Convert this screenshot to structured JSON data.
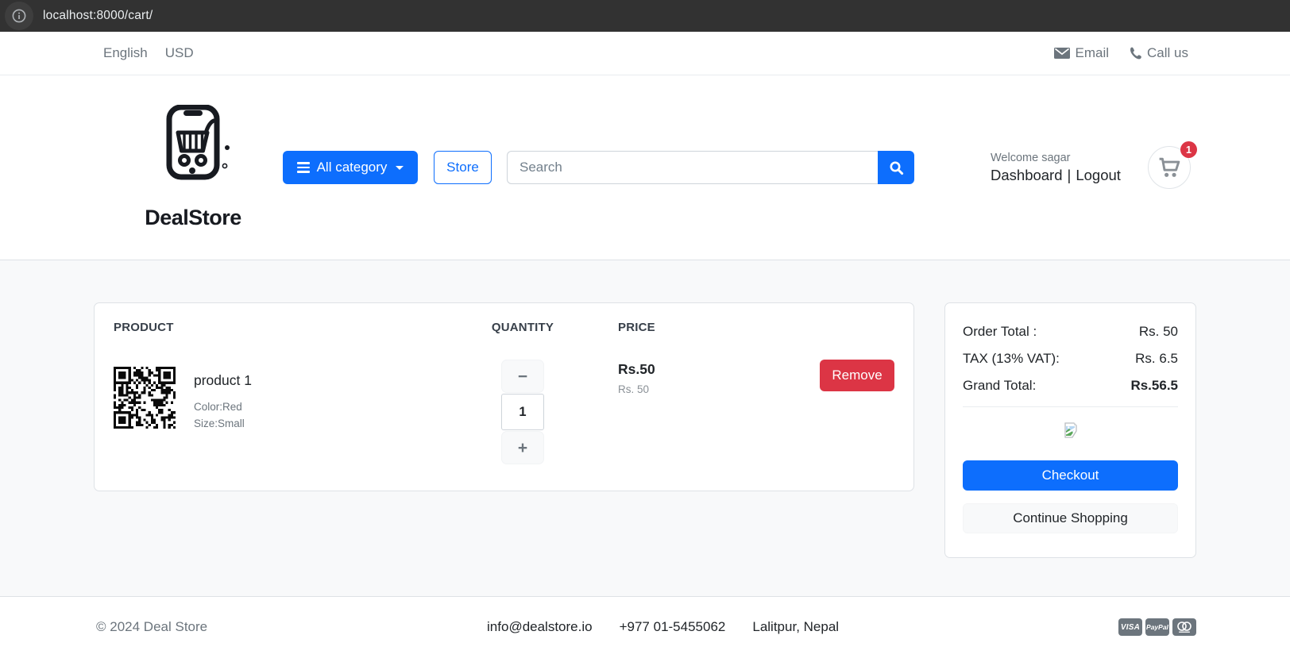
{
  "browser": {
    "url": "localhost:8000/cart/"
  },
  "topbar": {
    "language": "English",
    "currency": "USD",
    "email_label": "Email",
    "call_label": "Call us"
  },
  "header": {
    "brand": "DealStore",
    "category_button": "All category",
    "store_button": "Store",
    "search_placeholder": "Search",
    "welcome": "Welcome sagar",
    "dashboard": "Dashboard",
    "separator": "|",
    "logout": "Logout",
    "cart_count": "1"
  },
  "cart": {
    "headers": {
      "product": "PRODUCT",
      "quantity": "QUANTITY",
      "price": "PRICE"
    },
    "qty_minus": "−",
    "qty_plus": "+",
    "items": [
      {
        "name": "product 1",
        "color": "Color:Red",
        "size": "Size:Small",
        "qty": "1",
        "price": "Rs.50",
        "price_sub": "Rs. 50",
        "remove_label": "Remove"
      }
    ]
  },
  "summary": {
    "rows": [
      {
        "label": "Order Total :",
        "value": "Rs. 50"
      },
      {
        "label": "TAX (13% VAT):",
        "value": "Rs. 6.5"
      },
      {
        "label": "Grand Total:",
        "value": "Rs.56.5"
      }
    ],
    "checkout_label": "Checkout",
    "continue_label": "Continue Shopping"
  },
  "footer": {
    "copyright": "© 2024 Deal Store",
    "email": "info@dealstore.io",
    "phone": "+977 01-5455062",
    "location": "Lalitpur, Nepal",
    "payments": [
      "VISA",
      "PayPal",
      "Mastercard"
    ]
  },
  "colors": {
    "primary": "#0d6efd",
    "danger": "#dc3545",
    "muted_text": "#6c757d",
    "dark_text": "#212529",
    "section_bg": "#f8f9fa",
    "border": "#dee2e6",
    "browser_bar": "#323232"
  }
}
